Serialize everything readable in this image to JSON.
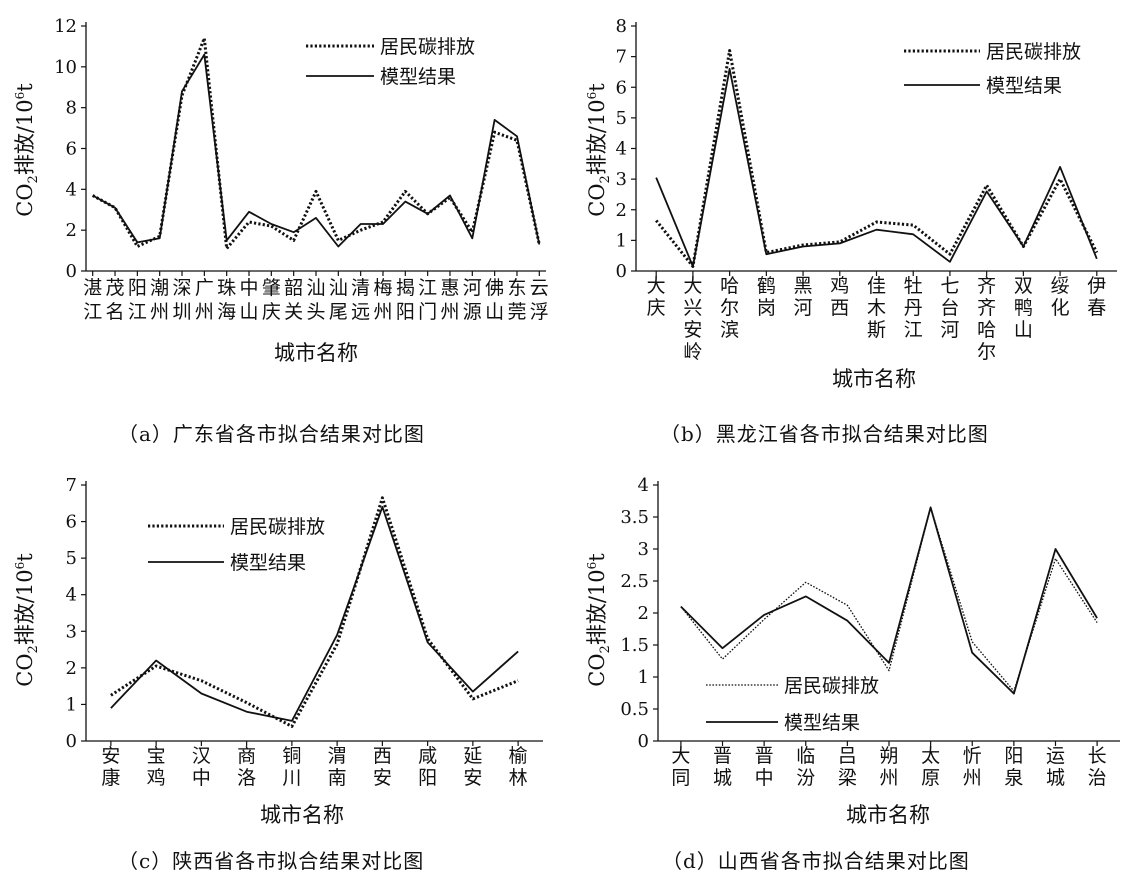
{
  "legend": {
    "series1": "居民碳排放",
    "series2": "模型结果"
  },
  "ylabel": {
    "prefix": "CO",
    "sub": "2",
    "mid": "排放/10",
    "sup": "6",
    "unit": "t"
  },
  "xlabel": "城市名称",
  "chart_data": [
    {
      "id": "a",
      "type": "line",
      "caption": "（a）广东省各市拟合结果对比图",
      "categories": [
        "湛江",
        "茂名",
        "阳江",
        "潮州",
        "深圳",
        "广州",
        "珠海",
        "中山",
        "肇庆",
        "韶关",
        "汕头",
        "汕尾",
        "清远",
        "梅州",
        "揭阳",
        "江门",
        "惠州",
        "河源",
        "佛山",
        "东莞",
        "云浮"
      ],
      "ylim": [
        0,
        12
      ],
      "yticks": [
        0,
        2,
        4,
        6,
        8,
        10,
        12
      ],
      "series": [
        {
          "name": "居民碳排放",
          "style": "dotted",
          "values": [
            3.7,
            3.1,
            1.2,
            1.7,
            8.6,
            11.4,
            1.1,
            2.4,
            2.2,
            1.5,
            3.9,
            1.5,
            2.0,
            2.4,
            3.9,
            2.8,
            3.6,
            1.9,
            6.8,
            6.4,
            1.3
          ]
        },
        {
          "name": "模型结果",
          "style": "solid",
          "values": [
            3.7,
            3.1,
            1.4,
            1.6,
            8.8,
            10.6,
            1.5,
            2.9,
            2.3,
            1.9,
            2.6,
            1.2,
            2.3,
            2.3,
            3.4,
            2.8,
            3.7,
            1.6,
            7.4,
            6.6,
            1.3
          ]
        }
      ],
      "legend_position": "top-right"
    },
    {
      "id": "b",
      "type": "line",
      "caption": "（b）黑龙江省各市拟合结果对比图",
      "categories": [
        "大庆",
        "大兴安岭",
        "哈尔滨",
        "鹤岗",
        "黑河",
        "鸡西",
        "佳木斯",
        "牡丹江",
        "七台河",
        "齐齐哈尔",
        "双鸭山",
        "绥化",
        "伊春"
      ],
      "ylim": [
        0,
        8
      ],
      "yticks": [
        0,
        1,
        2,
        3,
        4,
        5,
        6,
        7,
        8
      ],
      "series": [
        {
          "name": "居民碳排放",
          "style": "dotted",
          "values": [
            1.65,
            0.15,
            7.2,
            0.6,
            0.85,
            0.95,
            1.6,
            1.5,
            0.55,
            2.8,
            0.8,
            3.0,
            0.6
          ]
        },
        {
          "name": "模型结果",
          "style": "solid",
          "values": [
            3.05,
            0.15,
            6.6,
            0.55,
            0.8,
            0.9,
            1.35,
            1.2,
            0.3,
            2.6,
            0.8,
            3.4,
            0.4
          ]
        }
      ],
      "legend_position": "top-right"
    },
    {
      "id": "c",
      "type": "line",
      "caption": "（c）陕西省各市拟合结果对比图",
      "categories": [
        "安康",
        "宝鸡",
        "汉中",
        "商洛",
        "铜川",
        "渭南",
        "西安",
        "咸阳",
        "延安",
        "榆林"
      ],
      "ylim": [
        0,
        7
      ],
      "yticks": [
        0,
        1,
        2,
        3,
        4,
        5,
        6,
        7
      ],
      "series": [
        {
          "name": "居民碳排放",
          "style": "dotted",
          "values": [
            1.25,
            2.05,
            1.65,
            1.05,
            0.4,
            2.65,
            6.65,
            2.8,
            1.15,
            1.65
          ]
        },
        {
          "name": "模型结果",
          "style": "solid",
          "values": [
            0.9,
            2.2,
            1.3,
            0.8,
            0.55,
            2.9,
            6.4,
            2.7,
            1.35,
            2.45
          ]
        }
      ],
      "legend_position": "top-left"
    },
    {
      "id": "d",
      "type": "line",
      "caption": "（d）山西省各市拟合结果对比图",
      "categories": [
        "大同",
        "晋城",
        "晋中",
        "临汾",
        "吕梁",
        "朔州",
        "太原",
        "忻州",
        "阳泉",
        "运城",
        "长治"
      ],
      "ylim": [
        0,
        4
      ],
      "yticks": [
        0,
        0.5,
        1,
        1.5,
        2,
        2.5,
        3,
        3.5,
        4
      ],
      "series": [
        {
          "name": "居民碳排放",
          "style": "dotted-thin",
          "values": [
            2.1,
            1.28,
            1.9,
            2.48,
            2.12,
            1.1,
            3.65,
            1.55,
            0.78,
            2.85,
            1.85
          ]
        },
        {
          "name": "模型结果",
          "style": "solid",
          "values": [
            2.1,
            1.45,
            1.97,
            2.26,
            1.88,
            1.22,
            3.65,
            1.38,
            0.74,
            3.0,
            1.92
          ]
        }
      ],
      "legend_position": "bottom-left"
    }
  ]
}
